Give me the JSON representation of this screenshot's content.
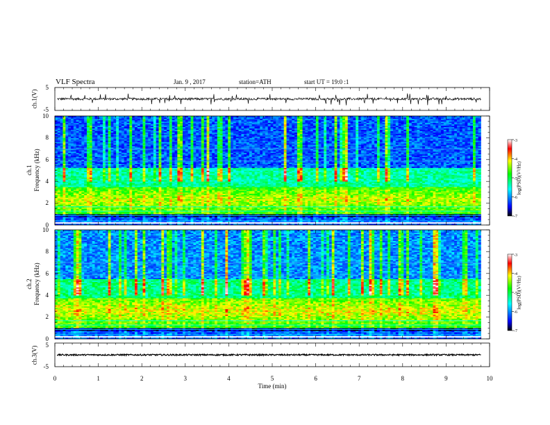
{
  "header": {
    "title": "VLF Spectra",
    "date": "Jan. 9 , 2017",
    "station": "station=ATH",
    "start": "start UT = 19:0 :1"
  },
  "colors": {
    "waveform": "#000000",
    "colormap": [
      "#ffffff",
      "#ff0000",
      "#ffff00",
      "#00ff00",
      "#00ffff",
      "#0000ff",
      "#000000"
    ]
  },
  "chart_data": [
    {
      "type": "line",
      "panel": "ch1-waveform",
      "ylabel": "ch.1(V)",
      "ylim": [
        -5,
        5
      ],
      "yticks": [
        "5",
        "-5"
      ],
      "xlim": [
        0,
        10
      ],
      "baseline_value": 0,
      "noise_amplitude": 0.5,
      "spike_amplitude": 2.5
    },
    {
      "type": "heatmap",
      "panel": "ch1-spectrogram",
      "ylabel": "ch.1\nFrequency (kHz)",
      "ylim": [
        0,
        10
      ],
      "yticks": [
        "0",
        "2",
        "4",
        "6",
        "8",
        "10"
      ],
      "xlim": [
        0,
        10
      ],
      "colorbar": {
        "label": "log(PSD)(V²/Hz)",
        "range": [
          -7,
          -3
        ],
        "ticks": [
          "-3",
          "-4",
          "-5",
          "-6",
          "-7"
        ]
      },
      "bands": [
        {
          "freq_khz": [
            1.0,
            3.5
          ],
          "peak_khz": 2.3,
          "level": -4.3
        },
        {
          "freq_khz": [
            3.5,
            5.2
          ],
          "level": -5.3
        },
        {
          "freq_khz": [
            5.2,
            10
          ],
          "level": -6.2
        }
      ],
      "data_end_min": 9.8
    },
    {
      "type": "heatmap",
      "panel": "ch2-spectrogram",
      "ylabel": "ch.2\nFrequency (kHz)",
      "ylim": [
        0,
        10
      ],
      "yticks": [
        "0",
        "2",
        "4",
        "6",
        "8",
        "10"
      ],
      "xlim": [
        0,
        10
      ],
      "colorbar": {
        "label": "log(PSD)(V²/Hz)",
        "range": [
          -7,
          -3
        ],
        "ticks": [
          "-3",
          "-4",
          "-5",
          "-6",
          "-7"
        ]
      },
      "bands": [
        {
          "freq_khz": [
            1.0,
            3.8
          ],
          "peak_khz": 2.6,
          "level": -4.2
        },
        {
          "freq_khz": [
            3.8,
            5.5
          ],
          "level": -5.2
        },
        {
          "freq_khz": [
            5.5,
            10
          ],
          "level": -6.0
        }
      ],
      "data_end_min": 9.8
    },
    {
      "type": "line",
      "panel": "ch3-waveform",
      "ylabel": "ch.3(V)",
      "ylim": [
        -5,
        5
      ],
      "yticks": [
        "5",
        "-5"
      ],
      "xlim": [
        0,
        10
      ],
      "baseline_value": 0,
      "noise_amplitude": 0.3
    }
  ],
  "xaxis": {
    "label": "Time (min)",
    "ticks": [
      "0",
      "1",
      "2",
      "3",
      "4",
      "5",
      "6",
      "7",
      "8",
      "9",
      "10"
    ]
  }
}
